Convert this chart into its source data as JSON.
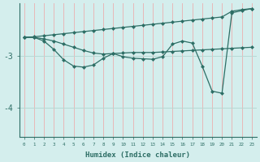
{
  "line1_x": [
    0,
    1,
    2,
    3,
    4,
    5,
    6,
    7,
    8,
    9,
    10,
    11,
    12,
    13,
    14,
    15,
    16,
    17,
    18,
    19,
    20,
    21,
    22,
    23
  ],
  "line1_y": [
    -2.65,
    -2.64,
    -2.62,
    -2.6,
    -2.58,
    -2.56,
    -2.54,
    -2.52,
    -2.5,
    -2.48,
    -2.46,
    -2.44,
    -2.42,
    -2.4,
    -2.38,
    -2.36,
    -2.34,
    -2.32,
    -2.3,
    -2.28,
    -2.26,
    -2.15,
    -2.12,
    -2.1
  ],
  "line2_x": [
    0,
    1,
    2,
    3,
    4,
    5,
    6,
    7,
    8,
    9,
    10,
    11,
    12,
    13,
    14,
    15,
    16,
    17,
    18,
    19,
    20,
    21,
    22,
    23
  ],
  "line2_y": [
    -2.65,
    -2.65,
    -2.68,
    -2.72,
    -2.78,
    -2.84,
    -2.9,
    -2.95,
    -2.97,
    -2.96,
    -2.95,
    -2.94,
    -2.94,
    -2.94,
    -2.93,
    -2.92,
    -2.91,
    -2.9,
    -2.89,
    -2.88,
    -2.87,
    -2.86,
    -2.85,
    -2.84
  ],
  "line3_x": [
    0,
    1,
    2,
    3,
    4,
    5,
    6,
    7,
    8,
    9,
    10,
    11,
    12,
    13,
    14,
    15,
    16,
    17,
    18,
    19,
    20,
    21,
    22,
    23
  ],
  "line3_y": [
    -2.65,
    -2.65,
    -2.72,
    -2.88,
    -3.08,
    -3.2,
    -3.22,
    -3.18,
    -3.05,
    -2.96,
    -3.02,
    -3.05,
    -3.06,
    -3.07,
    -3.02,
    -2.78,
    -2.72,
    -2.76,
    -3.2,
    -3.68,
    -3.72,
    -2.18,
    -2.14,
    -2.1
  ],
  "line_color": "#2d6e65",
  "bg_color": "#d4eeed",
  "vgrid_color": "#e8b8b8",
  "hgrid_color": "#b8d8d4",
  "yticks": [
    -4,
    -3
  ],
  "ylim": [
    -4.55,
    -2.0
  ],
  "xlim": [
    -0.5,
    23.5
  ],
  "xlabel": "Humidex (Indice chaleur)",
  "marker": "D",
  "markersize": 2.5,
  "linewidth": 0.9
}
